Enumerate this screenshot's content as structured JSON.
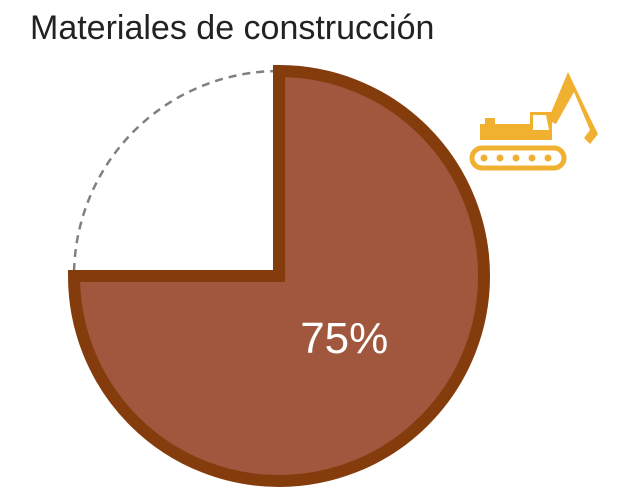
{
  "chart_data": {
    "type": "pie",
    "title": "Materiales de construcción",
    "values": [
      75,
      25
    ],
    "value_labels": [
      "75%",
      null
    ],
    "colors": [
      "#a0573d",
      "none"
    ],
    "edge_colors": [
      "#843c0c",
      "#808080"
    ],
    "dashed": [
      false,
      true
    ]
  }
}
